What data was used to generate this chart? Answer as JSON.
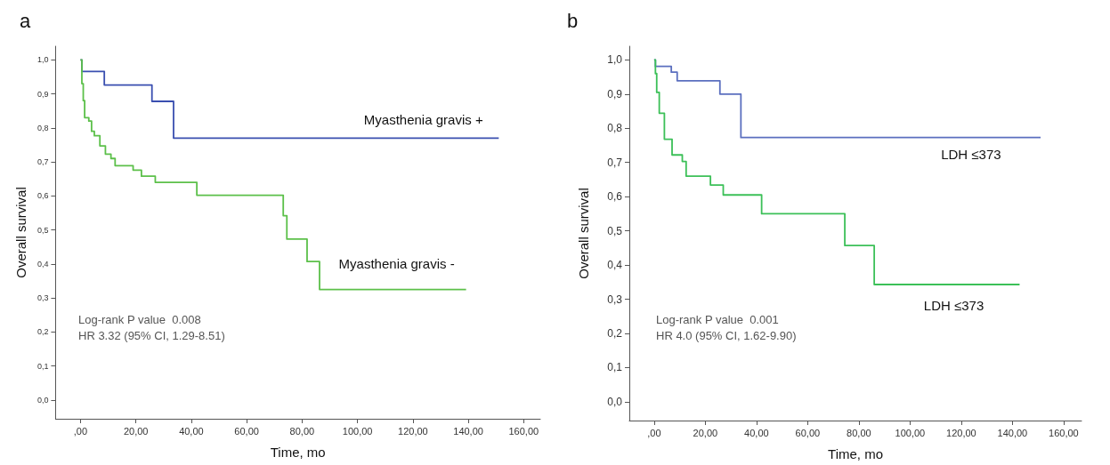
{
  "chart_data": [
    {
      "type": "step",
      "title": "a",
      "xlabel": "Time, mo",
      "ylabel": "Overall survival",
      "xlim": [
        -9,
        166
      ],
      "xticks": [
        {
          "value": 0,
          "label": ",00"
        },
        {
          "value": 20,
          "label": "20,00"
        },
        {
          "value": 40,
          "label": "40,00"
        },
        {
          "value": 60,
          "label": "60,00"
        },
        {
          "value": 80,
          "label": "80,00"
        },
        {
          "value": 100,
          "label": "100,00"
        },
        {
          "value": 120,
          "label": "120,00"
        },
        {
          "value": 140,
          "label": "140,00"
        },
        {
          "value": 160,
          "label": "160,00"
        }
      ],
      "ylim": [
        -0.055,
        1.04
      ],
      "yticks": [
        {
          "value": 0,
          "label": "0,0"
        },
        {
          "value": 0.1,
          "label": "0,1"
        },
        {
          "value": 0.2,
          "label": "0,2"
        },
        {
          "value": 0.3,
          "label": "0,3"
        },
        {
          "value": 0.4,
          "label": "0,4"
        },
        {
          "value": 0.5,
          "label": "0,5"
        },
        {
          "value": 0.6,
          "label": "0,6"
        },
        {
          "value": 0.7,
          "label": "0,7"
        },
        {
          "value": 0.8,
          "label": "0,8"
        },
        {
          "value": 0.9,
          "label": "0,9"
        },
        {
          "value": 1.0,
          "label": "1,0"
        }
      ],
      "series": [
        {
          "name": "Myasthenia gravis +",
          "color": "#3a4fb0",
          "x": [
            0,
            0.5,
            8.6,
            25.8,
            33.6,
            151
          ],
          "values": [
            1.0,
            0.966,
            0.926,
            0.878,
            0.77,
            0.77
          ]
        },
        {
          "name": "Myasthenia gravis -",
          "color": "#5cc04a",
          "x": [
            0,
            0.5,
            1,
            1.5,
            3,
            4,
            5,
            7,
            9,
            11,
            12.5,
            19,
            22,
            27,
            42,
            73.2,
            74.5,
            81.8,
            86.3,
            139.2
          ],
          "values": [
            1.0,
            0.93,
            0.88,
            0.83,
            0.82,
            0.79,
            0.777,
            0.747,
            0.723,
            0.71,
            0.689,
            0.676,
            0.658,
            0.64,
            0.602,
            0.542,
            0.473,
            0.407,
            0.325,
            0.325
          ]
        }
      ],
      "annotations": [
        "Log-rank P value  0.008",
        "HR 3.32 (95% CI, 1.29-8.51)"
      ],
      "grid": false,
      "legend": false
    },
    {
      "type": "step",
      "title": "b",
      "xlabel": "Time, mo",
      "ylabel": "Overall survival",
      "xlim": [
        -9.7,
        167
      ],
      "xticks": [
        {
          "value": 0,
          "label": ",00"
        },
        {
          "value": 20,
          "label": "20,00"
        },
        {
          "value": 40,
          "label": "40,00"
        },
        {
          "value": 60,
          "label": "60,00"
        },
        {
          "value": 80,
          "label": "80,00"
        },
        {
          "value": 100,
          "label": "100,00"
        },
        {
          "value": 120,
          "label": "120,00"
        },
        {
          "value": 140,
          "label": "140,00"
        },
        {
          "value": 160,
          "label": "160,00"
        }
      ],
      "ylim": [
        -0.055,
        1.04
      ],
      "yticks": [
        {
          "value": 0,
          "label": "0,0"
        },
        {
          "value": 0.1,
          "label": "0,1"
        },
        {
          "value": 0.2,
          "label": "0,2"
        },
        {
          "value": 0.3,
          "label": "0,3"
        },
        {
          "value": 0.4,
          "label": "0,4"
        },
        {
          "value": 0.5,
          "label": "0,5"
        },
        {
          "value": 0.6,
          "label": "0,6"
        },
        {
          "value": 0.7,
          "label": "0,7"
        },
        {
          "value": 0.8,
          "label": "0,8"
        },
        {
          "value": 0.9,
          "label": "0,9"
        },
        {
          "value": 1.0,
          "label": "1,0"
        }
      ],
      "series": [
        {
          "name": "LDH ≤373",
          "color": "#5b6fbf",
          "x": [
            0,
            0.5,
            6.7,
            9,
            25.7,
            33.9,
            151
          ],
          "values": [
            1.0,
            0.981,
            0.964,
            0.939,
            0.9,
            0.773,
            0.773
          ]
        },
        {
          "name": "LDH ≤373",
          "color": "#3cc058",
          "x": [
            0,
            0.5,
            1,
            2,
            4,
            7,
            11,
            12.5,
            22,
            27,
            42,
            74.5,
            86,
            142.8
          ],
          "values": [
            1.0,
            0.96,
            0.905,
            0.844,
            0.768,
            0.722,
            0.703,
            0.66,
            0.634,
            0.605,
            0.55,
            0.457,
            0.343,
            0.343
          ]
        }
      ],
      "annotations": [
        "Log-rank P value  0.001",
        "HR 4.0 (95% CI, 1.62-9.90)"
      ],
      "grid": false,
      "legend": false
    }
  ]
}
